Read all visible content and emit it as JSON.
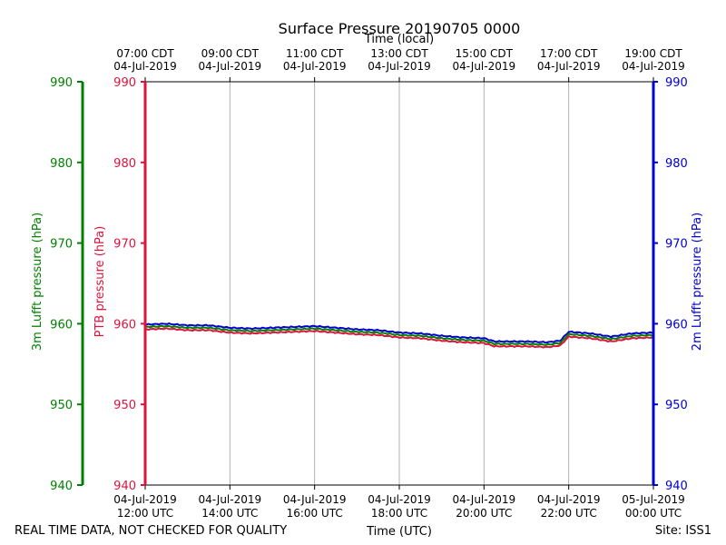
{
  "chart_data": {
    "type": "line",
    "title": "Surface Pressure 20190705 0000",
    "top_axis_label": "Time (local)",
    "xlabel": "Time (UTC)",
    "footer_left": "REAL TIME DATA, NOT CHECKED FOR QUALITY",
    "footer_right": "Site: ISS1",
    "xlim_hours_utc": [
      12,
      24
    ],
    "ylim": [
      940,
      990
    ],
    "yticks": [
      "940",
      "950",
      "960",
      "970",
      "980",
      "990"
    ],
    "y_axes": [
      {
        "name": "3m Lufft pressure (hPa)",
        "color": "#008000",
        "side": "far-left"
      },
      {
        "name": "PTB pressure (hPa)",
        "color": "#dc143c",
        "side": "left"
      },
      {
        "name": "2m Lufft pressure (hPa)",
        "color": "#0000cd",
        "side": "right"
      }
    ],
    "bottom_ticks": [
      {
        "hour": 12,
        "date": "04-Jul-2019",
        "time": "12:00 UTC"
      },
      {
        "hour": 14,
        "date": "04-Jul-2019",
        "time": "14:00 UTC"
      },
      {
        "hour": 16,
        "date": "04-Jul-2019",
        "time": "16:00 UTC"
      },
      {
        "hour": 18,
        "date": "04-Jul-2019",
        "time": "18:00 UTC"
      },
      {
        "hour": 20,
        "date": "04-Jul-2019",
        "time": "20:00 UTC"
      },
      {
        "hour": 22,
        "date": "04-Jul-2019",
        "time": "22:00 UTC"
      },
      {
        "hour": 24,
        "date": "05-Jul-2019",
        "time": "00:00 UTC"
      }
    ],
    "top_ticks": [
      {
        "hour": 12,
        "time": "07:00 CDT",
        "date": "04-Jul-2019"
      },
      {
        "hour": 14,
        "time": "09:00 CDT",
        "date": "04-Jul-2019"
      },
      {
        "hour": 16,
        "time": "11:00 CDT",
        "date": "04-Jul-2019"
      },
      {
        "hour": 18,
        "time": "13:00 CDT",
        "date": "04-Jul-2019"
      },
      {
        "hour": 20,
        "time": "15:00 CDT",
        "date": "04-Jul-2019"
      },
      {
        "hour": 22,
        "time": "17:00 CDT",
        "date": "04-Jul-2019"
      },
      {
        "hour": 24,
        "time": "19:00 CDT",
        "date": "04-Jul-2019"
      }
    ],
    "series": [
      {
        "name": "2m Lufft pressure",
        "color": "#0000cd",
        "x": [
          12.0,
          12.5,
          13.0,
          13.5,
          14.0,
          14.5,
          15.0,
          15.5,
          16.0,
          16.5,
          17.0,
          17.5,
          18.0,
          18.5,
          19.0,
          19.5,
          20.0,
          20.25,
          20.5,
          21.0,
          21.5,
          21.8,
          22.0,
          22.5,
          23.0,
          23.5,
          24.0
        ],
        "values": [
          959.9,
          960.0,
          959.8,
          959.8,
          959.5,
          959.4,
          959.5,
          959.6,
          959.7,
          959.5,
          959.3,
          959.2,
          958.9,
          958.8,
          958.5,
          958.3,
          958.2,
          957.8,
          957.8,
          957.8,
          957.7,
          957.9,
          959.0,
          958.8,
          958.4,
          958.8,
          958.9
        ]
      },
      {
        "name": "3m Lufft pressure",
        "color": "#008000",
        "x": [
          12.0,
          12.5,
          13.0,
          13.5,
          14.0,
          14.5,
          15.0,
          15.5,
          16.0,
          16.5,
          17.0,
          17.5,
          18.0,
          18.5,
          19.0,
          19.5,
          20.0,
          20.25,
          20.5,
          21.0,
          21.5,
          21.8,
          22.0,
          22.5,
          23.0,
          23.5,
          24.0
        ],
        "values": [
          959.6,
          959.7,
          959.5,
          959.5,
          959.2,
          959.1,
          959.2,
          959.3,
          959.4,
          959.2,
          959.0,
          958.9,
          958.6,
          958.5,
          958.2,
          958.0,
          957.9,
          957.5,
          957.5,
          957.5,
          957.4,
          957.6,
          958.7,
          958.5,
          958.1,
          958.5,
          958.6
        ]
      },
      {
        "name": "PTB pressure",
        "color": "#dc143c",
        "x": [
          12.0,
          12.5,
          13.0,
          13.5,
          14.0,
          14.5,
          15.0,
          15.5,
          16.0,
          16.5,
          17.0,
          17.5,
          18.0,
          18.5,
          19.0,
          19.5,
          20.0,
          20.25,
          20.5,
          21.0,
          21.5,
          21.8,
          22.0,
          22.5,
          23.0,
          23.5,
          24.0
        ],
        "values": [
          959.3,
          959.4,
          959.2,
          959.2,
          958.9,
          958.8,
          958.9,
          959.0,
          959.1,
          958.9,
          958.7,
          958.6,
          958.3,
          958.2,
          957.9,
          957.7,
          957.6,
          957.2,
          957.2,
          957.2,
          957.1,
          957.3,
          958.4,
          958.2,
          957.8,
          958.2,
          958.3
        ]
      }
    ]
  }
}
